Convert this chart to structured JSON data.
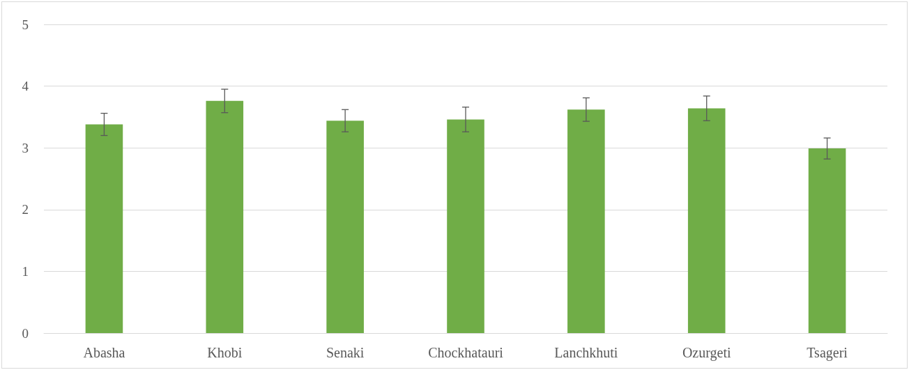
{
  "chart_data": {
    "type": "bar",
    "categories": [
      "Abasha",
      "Khobi",
      "Senaki",
      "Chockhatauri",
      "Lanchkhuti",
      "Ozurgeti",
      "Tsageri"
    ],
    "values": [
      3.38,
      3.76,
      3.44,
      3.46,
      3.62,
      3.64,
      2.99
    ],
    "errors": [
      0.18,
      0.19,
      0.18,
      0.2,
      0.19,
      0.2,
      0.17
    ],
    "color": "#70ad47",
    "ylim": [
      0,
      5
    ],
    "yticks": [
      0,
      1,
      2,
      3,
      4,
      5
    ],
    "grid": "y"
  }
}
